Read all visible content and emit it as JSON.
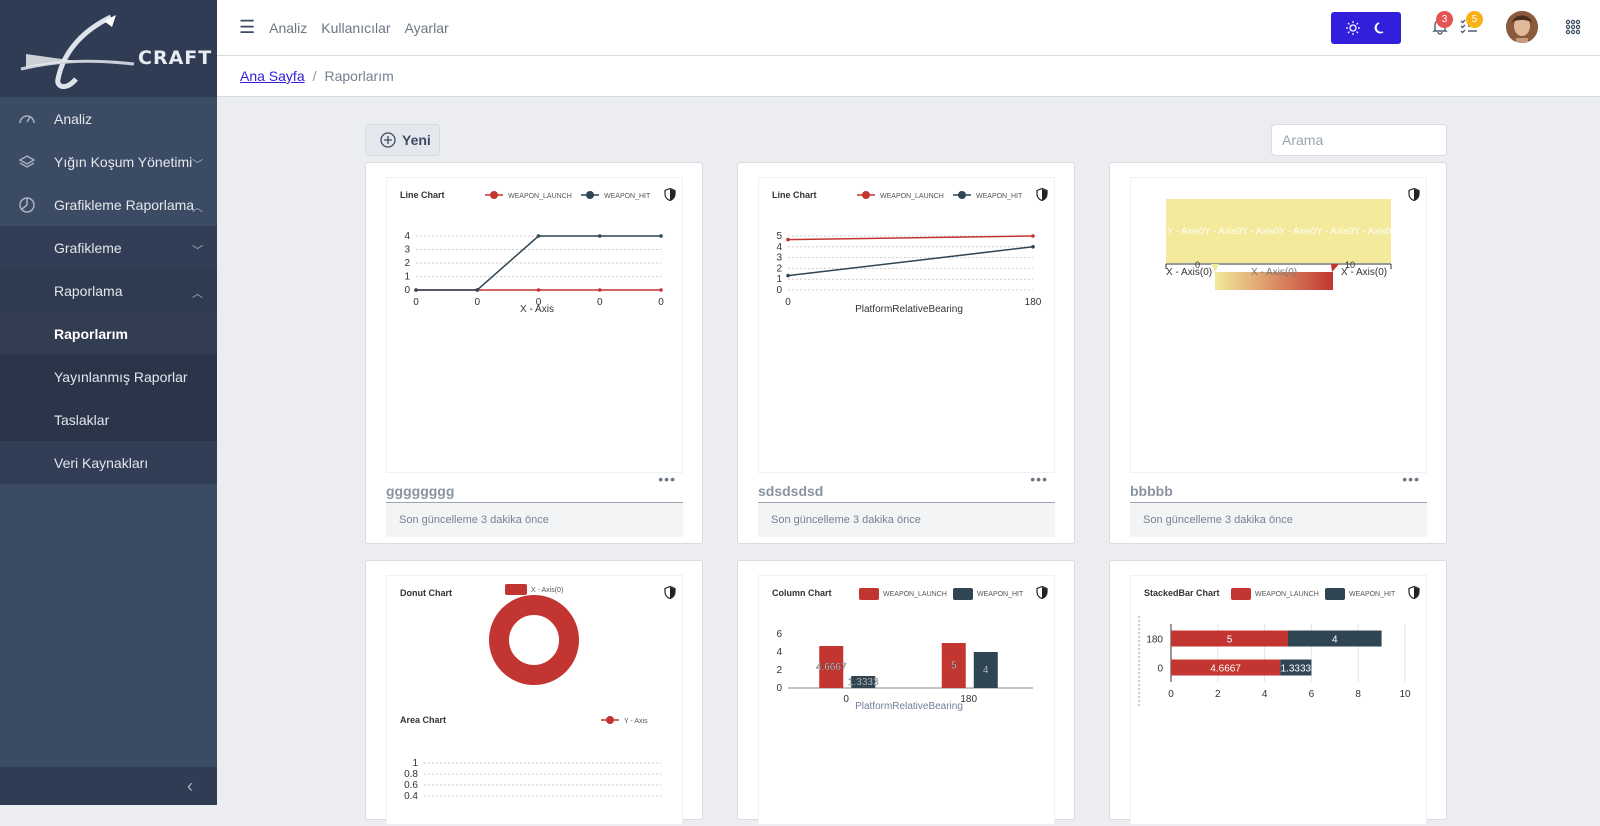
{
  "app": {
    "logo_text": "CRAFT"
  },
  "sidebar": {
    "items": [
      {
        "label": "Analiz",
        "icon": "speedometer-icon"
      },
      {
        "label": "Yığın Koşum Yönetimi",
        "icon": "layers-icon"
      },
      {
        "label": "Grafikleme Raporlama",
        "icon": "chart-pie-icon"
      },
      {
        "label": "Grafikleme"
      },
      {
        "label": "Raporlama"
      },
      {
        "label": "Raporlarım"
      },
      {
        "label": "Yayınlanmış Raporlar"
      },
      {
        "label": "Taslaklar"
      },
      {
        "label": "Veri Kaynakları"
      }
    ]
  },
  "header": {
    "nav": [
      "Analiz",
      "Kullanıcılar",
      "Ayarlar"
    ],
    "notifications_count": "3",
    "tasks_count": "5"
  },
  "breadcrumb": {
    "home": "Ana Sayfa",
    "current": "Raporlarım"
  },
  "toolbar": {
    "new_label": "Yeni",
    "search_placeholder": "Arama"
  },
  "colors": {
    "accent": "#321fdb",
    "series_red": "#c23531",
    "series_dark": "#2f4554",
    "sidebar": "#3c4b64"
  },
  "cards": [
    {
      "name": "gggggggg",
      "footer": "Son güncelleme 3 dakika önce"
    },
    {
      "name": "sdsdsdsd",
      "footer": "Son güncelleme 3 dakika önce"
    },
    {
      "name": "bbbbb",
      "footer": "Son güncelleme 3 dakika önce"
    }
  ],
  "chart_data": [
    {
      "type": "line",
      "title": "Line Chart",
      "categories": [
        "0",
        "0",
        "0",
        "0",
        "0"
      ],
      "xlabel": "X - Axis",
      "ylim": [
        0,
        4
      ],
      "yticks": [
        "0",
        "1",
        "2",
        "3",
        "4"
      ],
      "series": [
        {
          "name": "WEAPON_LAUNCH",
          "values": [
            0,
            0,
            0,
            0,
            0
          ]
        },
        {
          "name": "WEAPON_HIT",
          "values": [
            0,
            0,
            4,
            4,
            4
          ]
        }
      ]
    },
    {
      "type": "line",
      "title": "Line Chart",
      "categories": [
        "0",
        "180"
      ],
      "xlabel": "PlatformRelativeBearing",
      "ylim": [
        0,
        5
      ],
      "yticks": [
        "0",
        "1",
        "2",
        "3",
        "4",
        "5"
      ],
      "series": [
        {
          "name": "WEAPON_LAUNCH",
          "values": [
            4.6667,
            5
          ]
        },
        {
          "name": "WEAPON_HIT",
          "values": [
            1.3333,
            4
          ]
        }
      ]
    },
    {
      "type": "heatmap",
      "band_text": "Y - Axis0Y - Axis0Y - Axis0Y - Axis0Y - Axis0Y - Axis0",
      "x_left": "X - Axis(0)",
      "x_mid": "X - Axis(0)",
      "x_right": "X - Axis(0)",
      "scale_min": "0",
      "scale_max": "10"
    },
    {
      "type": "pie",
      "title": "Donut Chart",
      "legend": [
        "X - Axis(0)"
      ]
    },
    {
      "type": "area",
      "title": "Area Chart",
      "series": [
        {
          "name": "Y - Axis"
        }
      ],
      "yticks": [
        "0.4",
        "0.6",
        "0.8",
        "1"
      ]
    },
    {
      "type": "bar",
      "title": "Column Chart",
      "categories": [
        "0",
        "180"
      ],
      "xlabel": "PlatformRelativeBearing",
      "ylim": [
        0,
        6
      ],
      "yticks": [
        "0",
        "2",
        "4",
        "6"
      ],
      "series": [
        {
          "name": "WEAPON_LAUNCH",
          "values": [
            4.6667,
            5
          ],
          "labels": [
            "4.6667",
            "5"
          ]
        },
        {
          "name": "WEAPON_HIT",
          "values": [
            1.3333,
            4
          ],
          "labels": [
            "1.3333",
            "4"
          ]
        }
      ]
    },
    {
      "type": "bar",
      "title": "StackedBar Chart",
      "orientation": "horizontal",
      "stacked": true,
      "categories": [
        "0",
        "180"
      ],
      "xlim": [
        0,
        10
      ],
      "xticks": [
        "0",
        "2",
        "4",
        "6",
        "8",
        "10"
      ],
      "series": [
        {
          "name": "WEAPON_LAUNCH",
          "values": [
            4.6667,
            5
          ],
          "labels": [
            "4.6667",
            "5"
          ]
        },
        {
          "name": "WEAPON_HIT",
          "values": [
            1.3333,
            4
          ],
          "labels": [
            "1.3333",
            "4"
          ]
        }
      ]
    }
  ]
}
